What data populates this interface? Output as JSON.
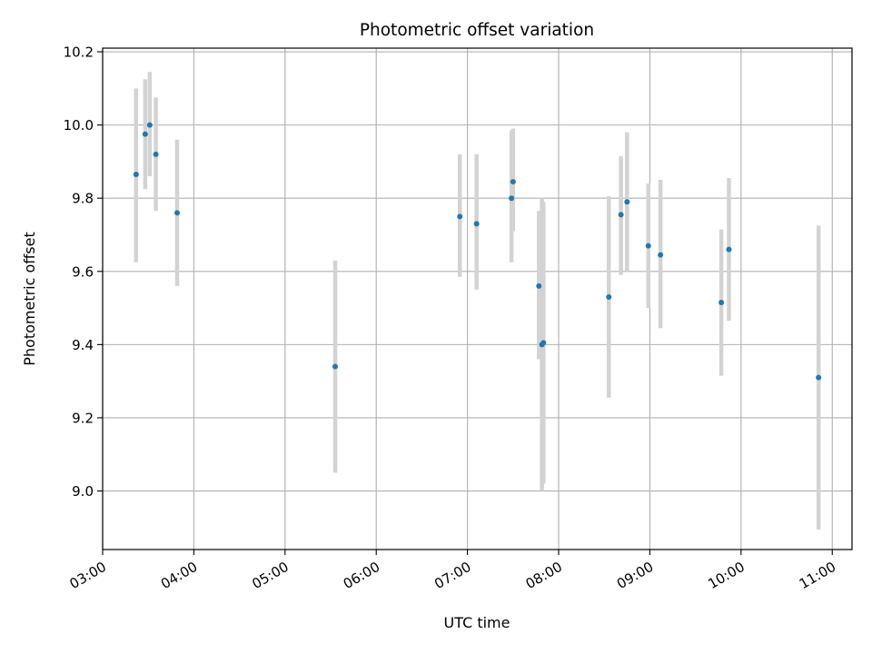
{
  "chart_data": {
    "type": "scatter",
    "title": "Photometric offset variation",
    "xlabel": "UTC time",
    "ylabel": "Photometric offset",
    "x_ticks": [
      "03:00",
      "04:00",
      "05:00",
      "06:00",
      "07:00",
      "08:00",
      "09:00",
      "10:00",
      "11:00"
    ],
    "y_ticks": [
      "9.0",
      "9.2",
      "9.4",
      "9.6",
      "9.8",
      "10.0",
      "10.2"
    ],
    "xlim": [
      "03:00",
      "11:13"
    ],
    "ylim": [
      8.84,
      10.21
    ],
    "grid": true,
    "marker_color": "#1f77b4",
    "errorbar_color": "#d3d3d3",
    "points": [
      {
        "time": "03:22",
        "value": 9.865,
        "low": 9.625,
        "high": 10.1
      },
      {
        "time": "03:28",
        "value": 9.975,
        "low": 9.825,
        "high": 10.125
      },
      {
        "time": "03:31",
        "value": 10.0,
        "low": 9.86,
        "high": 10.145
      },
      {
        "time": "03:35",
        "value": 9.92,
        "low": 9.765,
        "high": 10.075
      },
      {
        "time": "03:49",
        "value": 9.76,
        "low": 9.56,
        "high": 9.96
      },
      {
        "time": "05:33",
        "value": 9.34,
        "low": 9.05,
        "high": 9.63
      },
      {
        "time": "06:55",
        "value": 9.75,
        "low": 9.585,
        "high": 9.92
      },
      {
        "time": "07:06",
        "value": 9.73,
        "low": 9.55,
        "high": 9.92
      },
      {
        "time": "07:30",
        "value": 9.845,
        "low": 9.71,
        "high": 9.99
      },
      {
        "time": "07:29",
        "value": 9.8,
        "low": 9.625,
        "high": 9.985
      },
      {
        "time": "07:47",
        "value": 9.56,
        "low": 9.36,
        "high": 9.765
      },
      {
        "time": "07:49",
        "value": 9.4,
        "low": 9.0,
        "high": 9.8
      },
      {
        "time": "07:50",
        "value": 9.405,
        "low": 9.02,
        "high": 9.79
      },
      {
        "time": "08:33",
        "value": 9.53,
        "low": 9.255,
        "high": 9.805
      },
      {
        "time": "08:41",
        "value": 9.755,
        "low": 9.59,
        "high": 9.915
      },
      {
        "time": "08:45",
        "value": 9.79,
        "low": 9.6,
        "high": 9.98
      },
      {
        "time": "08:59",
        "value": 9.67,
        "low": 9.5,
        "high": 9.84
      },
      {
        "time": "09:07",
        "value": 9.645,
        "low": 9.445,
        "high": 9.85
      },
      {
        "time": "09:47",
        "value": 9.515,
        "low": 9.315,
        "high": 9.715
      },
      {
        "time": "09:52",
        "value": 9.66,
        "low": 9.465,
        "high": 9.855
      },
      {
        "time": "10:51",
        "value": 9.31,
        "low": 8.895,
        "high": 9.725
      }
    ]
  }
}
